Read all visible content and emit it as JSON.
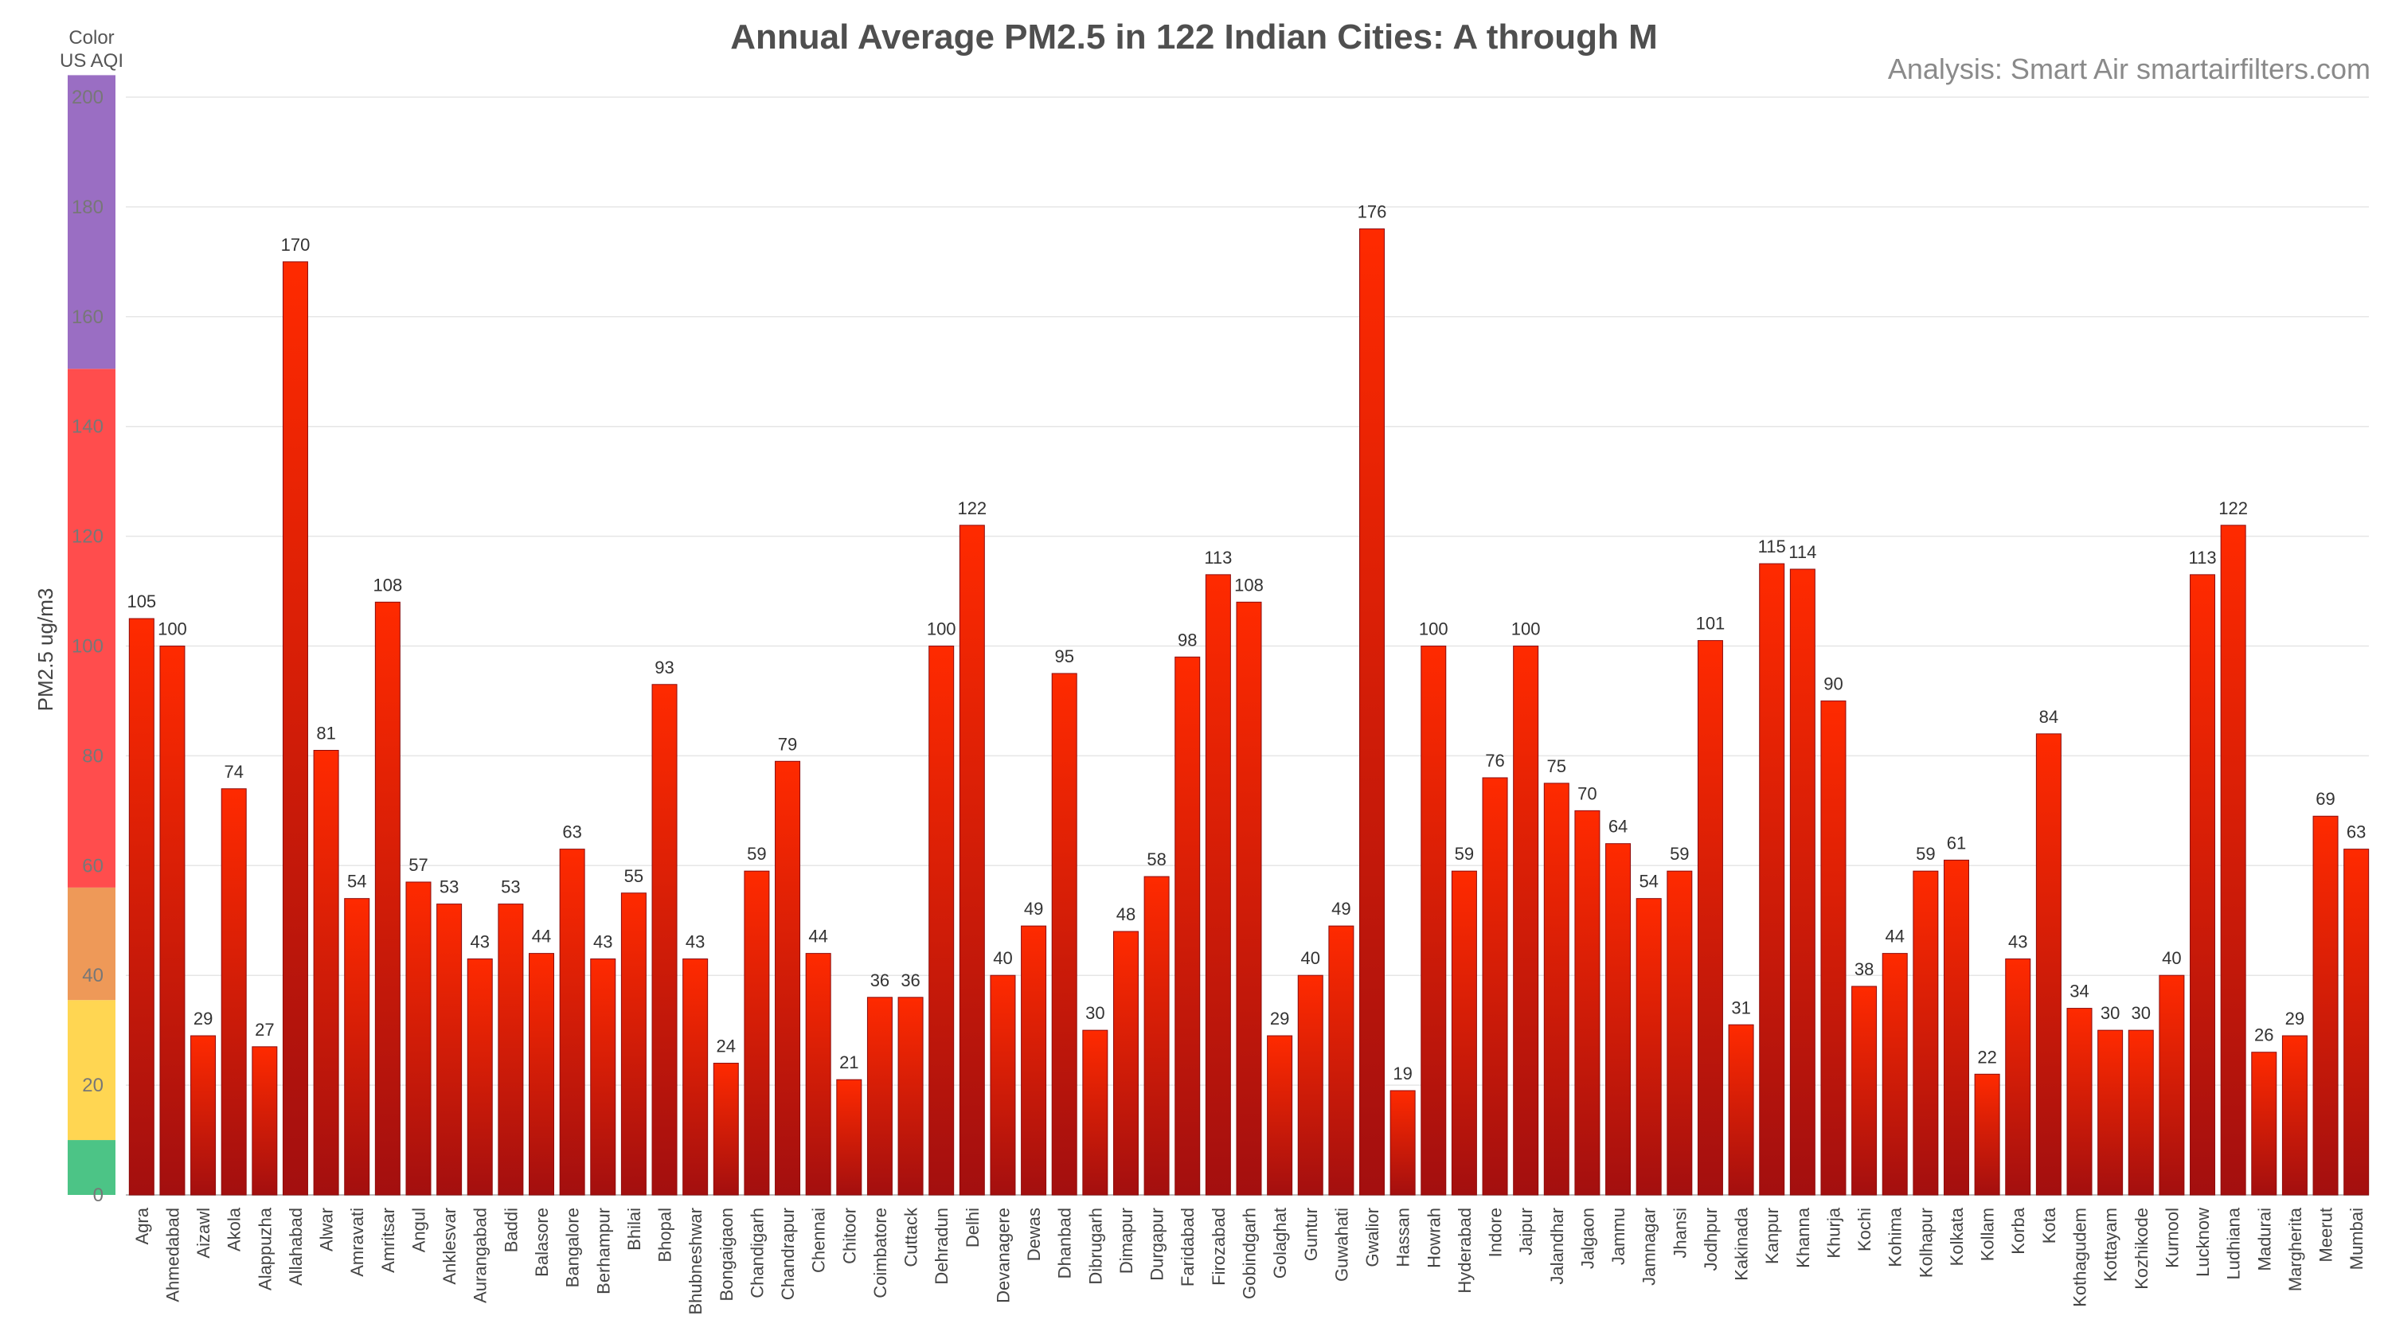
{
  "chart_data": {
    "type": "bar",
    "title": "Annual Average PM2.5 in 122 Indian Cities: A through M",
    "source": "Analysis: Smart Air smartairfilters.com",
    "ylabel": "PM2.5 ug/m3",
    "xlabel": "",
    "ylim": [
      0,
      200
    ],
    "yticks": [
      0,
      20,
      40,
      60,
      80,
      100,
      120,
      140,
      160,
      180,
      200
    ],
    "grid": true,
    "legend": {
      "header_line1": "Color",
      "header_line2": "US AQI",
      "bands": [
        {
          "from": 0,
          "to": 10,
          "color": "#4cc486"
        },
        {
          "from": 10,
          "to": 35.5,
          "color": "#ffd652"
        },
        {
          "from": 35.5,
          "to": 56,
          "color": "#ee9958"
        },
        {
          "from": 56,
          "to": 150.5,
          "color": "#ff4d4d"
        },
        {
          "from": 150.5,
          "to": 204,
          "color": "#9a6ec3"
        }
      ]
    },
    "bar_color_top": "#ff2a00",
    "bar_color_bottom": "#a30f0f",
    "categories": [
      "Agra",
      "Ahmedabad",
      "Aizawl",
      "Akola",
      "Alappuzha",
      "Allahabad",
      "Alwar",
      "Amravati",
      "Amritsar",
      "Angul",
      "Anklesvar",
      "Aurangabad",
      "Baddi",
      "Balasore",
      "Bangalore",
      "Berhampur",
      "Bhilai",
      "Bhopal",
      "Bhubneshwar",
      "Bongaigaon",
      "Chandigarh",
      "Chandrapur",
      "Chennai",
      "Chitoor",
      "Coimbatore",
      "Cuttack",
      "Dehradun",
      "Delhi",
      "Devanagere",
      "Dewas",
      "Dhanbad",
      "Dibrugarh",
      "Dimapur",
      "Durgapur",
      "Faridabad",
      "Firozabad",
      "Gobindgarh",
      "Golaghat",
      "Guntur",
      "Guwahati",
      "Gwalior",
      "Hassan",
      "Howrah",
      "Hyderabad",
      "Indore",
      "Jaipur",
      "Jalandhar",
      "Jalgaon",
      "Jammu",
      "Jamnagar",
      "Jhansi",
      "Jodhpur",
      "Kakinada",
      "Kanpur",
      "Khanna",
      "Khurja",
      "Kochi",
      "Kohima",
      "Kolhapur",
      "Kolkata",
      "Kollam",
      "Korba",
      "Kota",
      "Kothagudem",
      "Kottayam",
      "Kozhikode",
      "Kurnool",
      "Lucknow",
      "Ludhiana",
      "Madurai",
      "Margherita",
      "Meerut",
      "Mumbai"
    ],
    "values": [
      105,
      100,
      29,
      74,
      27,
      170,
      81,
      54,
      108,
      57,
      53,
      43,
      53,
      44,
      63,
      43,
      55,
      93,
      43,
      24,
      59,
      79,
      44,
      21,
      36,
      36,
      100,
      122,
      40,
      49,
      95,
      30,
      48,
      58,
      98,
      113,
      108,
      29,
      40,
      49,
      176,
      19,
      100,
      59,
      76,
      100,
      75,
      70,
      64,
      54,
      59,
      101,
      31,
      115,
      114,
      90,
      38,
      44,
      59,
      61,
      22,
      43,
      84,
      34,
      30,
      30,
      40,
      113,
      122,
      26,
      29,
      69,
      63
    ]
  }
}
